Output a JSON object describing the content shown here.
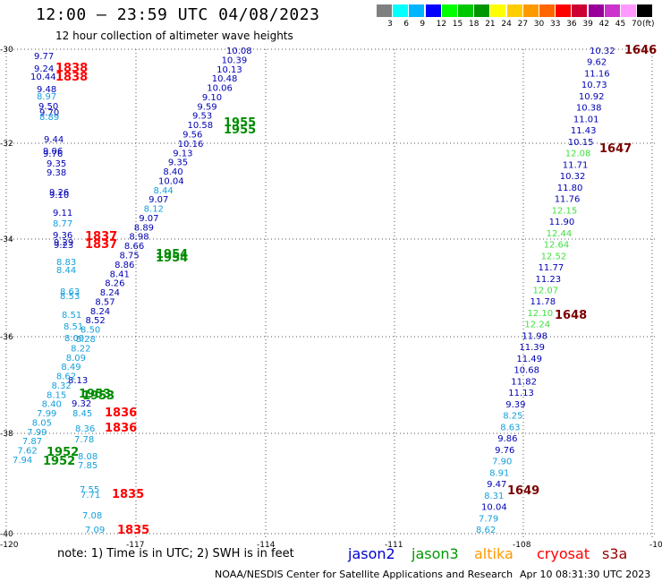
{
  "header": {
    "title": "12:00 – 23:59 UTC 04/08/2023",
    "subtitle": "12 hour collection of altimeter wave heights"
  },
  "legend": {
    "labels": [
      "3",
      "6",
      "9",
      "12",
      "15",
      "18",
      "21",
      "24",
      "27",
      "30",
      "33",
      "36",
      "39",
      "42",
      "45",
      "70"
    ],
    "unit": "(ft)",
    "colors": [
      "#808080",
      "#00ffff",
      "#00b4ff",
      "#0000ff",
      "#00ff00",
      "#00c800",
      "#009600",
      "#ffff00",
      "#ffcc00",
      "#ff9900",
      "#ff6600",
      "#ff0000",
      "#cc0033",
      "#990099",
      "#cc33cc",
      "#ff99ff",
      "#000000"
    ]
  },
  "axes": {
    "lon_labels": [
      "-120",
      "-117",
      "-114",
      "-111",
      "-108",
      "-10"
    ],
    "lat_labels": [
      "-30",
      "-32",
      "-34",
      "-36",
      "-38",
      "-40"
    ]
  },
  "map_data": {
    "colors": {
      "navy": "#0000b4",
      "cyan": "#14a0dc",
      "lgreen": "#40e040",
      "dgreen": "#008c00",
      "red": "#ff0000",
      "maroon": "#7a0000"
    },
    "left_column": [
      {
        "label": "9.77",
        "color": "navy"
      },
      {
        "label": "9.24",
        "color": "navy"
      },
      {
        "label": "10.44",
        "color": "navy"
      },
      {
        "label": "9.48",
        "color": "navy"
      },
      {
        "label": "8.97",
        "color": "cyan"
      },
      {
        "label": "9.50",
        "color": "navy"
      },
      {
        "label": "9.70",
        "color": "navy"
      },
      {
        "label": "8.89",
        "color": "cyan"
      },
      {
        "label": "9.44",
        "color": "navy"
      },
      {
        "label": "9.06",
        "color": "navy"
      },
      {
        "label": "9.76",
        "color": "navy"
      },
      {
        "label": "9.35",
        "color": "navy"
      },
      {
        "label": "9.38",
        "color": "navy"
      },
      {
        "label": "9.26",
        "color": "navy"
      },
      {
        "label": "9.10",
        "color": "navy"
      },
      {
        "label": "9.11",
        "color": "navy"
      },
      {
        "label": "8.77",
        "color": "cyan"
      },
      {
        "label": "9.36",
        "color": "navy"
      },
      {
        "label": "9.29",
        "color": "navy"
      },
      {
        "label": "9.23",
        "color": "navy"
      },
      {
        "label": "8.83",
        "color": "cyan"
      },
      {
        "label": "8.44",
        "color": "cyan"
      },
      {
        "label": "8.63",
        "color": "cyan"
      },
      {
        "label": "8.53",
        "color": "cyan"
      },
      {
        "label": "8.51",
        "color": "cyan"
      },
      {
        "label": "8.51",
        "color": "cyan"
      },
      {
        "label": "8.09",
        "color": "cyan"
      },
      {
        "label": "8.13",
        "color": "navy"
      },
      {
        "label": "9.32",
        "color": "navy"
      },
      {
        "label": "8.45",
        "color": "cyan"
      },
      {
        "label": "8.36",
        "color": "cyan"
      },
      {
        "label": "7.78",
        "color": "cyan"
      },
      {
        "label": "8.08",
        "color": "cyan"
      },
      {
        "label": "7.85",
        "color": "cyan"
      },
      {
        "label": "7.55",
        "color": "cyan"
      },
      {
        "label": "7.71",
        "color": "cyan"
      },
      {
        "label": "7.08",
        "color": "cyan"
      },
      {
        "label": "7.09",
        "color": "cyan"
      }
    ],
    "diagonal_track": [
      {
        "label": "10.08",
        "color": "navy"
      },
      {
        "label": "10.39",
        "color": "navy"
      },
      {
        "label": "10.13",
        "color": "navy"
      },
      {
        "label": "10.48",
        "color": "navy"
      },
      {
        "label": "10.06",
        "color": "navy"
      },
      {
        "label": "9.10",
        "color": "navy"
      },
      {
        "label": "9.59",
        "color": "navy"
      },
      {
        "label": "9.53",
        "color": "navy"
      },
      {
        "label": "10.58",
        "color": "navy"
      },
      {
        "label": "9.56",
        "color": "navy"
      },
      {
        "label": "10.16",
        "color": "navy"
      },
      {
        "label": "9.13",
        "color": "navy"
      },
      {
        "label": "9.35",
        "color": "navy"
      },
      {
        "label": "8.40",
        "color": "navy"
      },
      {
        "label": "10.04",
        "color": "navy"
      },
      {
        "label": "8.44",
        "color": "cyan"
      },
      {
        "label": "9.07",
        "color": "navy"
      },
      {
        "label": "8.12",
        "color": "cyan"
      },
      {
        "label": "9.07",
        "color": "navy"
      },
      {
        "label": "8.89",
        "color": "navy"
      },
      {
        "label": "8.98",
        "color": "navy"
      },
      {
        "label": "8.66",
        "color": "navy"
      },
      {
        "label": "8.75",
        "color": "navy"
      },
      {
        "label": "8.86",
        "color": "navy"
      },
      {
        "label": "8.41",
        "color": "navy"
      },
      {
        "label": "8.26",
        "color": "navy"
      },
      {
        "label": "8.24",
        "color": "navy"
      },
      {
        "label": "8.57",
        "color": "navy"
      },
      {
        "label": "8.24",
        "color": "navy"
      },
      {
        "label": "8.52",
        "color": "navy"
      },
      {
        "label": "8.50",
        "color": "cyan"
      },
      {
        "label": "8.28",
        "color": "cyan"
      },
      {
        "label": "8.22",
        "color": "cyan"
      },
      {
        "label": "8.09",
        "color": "cyan"
      },
      {
        "label": "8.49",
        "color": "cyan"
      },
      {
        "label": "8.62",
        "color": "cyan"
      },
      {
        "label": "8.32",
        "color": "cyan"
      },
      {
        "label": "8.15",
        "color": "cyan"
      },
      {
        "label": "8.40",
        "color": "cyan"
      },
      {
        "label": "7.99",
        "color": "cyan"
      },
      {
        "label": "8.05",
        "color": "cyan"
      },
      {
        "label": "7.99",
        "color": "cyan"
      },
      {
        "label": "7.87",
        "color": "cyan"
      },
      {
        "label": "7.62",
        "color": "cyan"
      },
      {
        "label": "7.94",
        "color": "cyan"
      }
    ],
    "right_track": [
      {
        "label": "10.32",
        "color": "navy"
      },
      {
        "label": "9.62",
        "color": "navy"
      },
      {
        "label": "11.16",
        "color": "navy"
      },
      {
        "label": "10.73",
        "color": "navy"
      },
      {
        "label": "10.92",
        "color": "navy"
      },
      {
        "label": "10.38",
        "color": "navy"
      },
      {
        "label": "11.01",
        "color": "navy"
      },
      {
        "label": "11.43",
        "color": "navy"
      },
      {
        "label": "10.15",
        "color": "navy"
      },
      {
        "label": "12.08",
        "color": "lgreen"
      },
      {
        "label": "11.71",
        "color": "navy"
      },
      {
        "label": "10.32",
        "color": "navy"
      },
      {
        "label": "11.80",
        "color": "navy"
      },
      {
        "label": "11.76",
        "color": "navy"
      },
      {
        "label": "12.15",
        "color": "lgreen"
      },
      {
        "label": "11.90",
        "color": "navy"
      },
      {
        "label": "12.44",
        "color": "lgreen"
      },
      {
        "label": "12.64",
        "color": "lgreen"
      },
      {
        "label": "12.52",
        "color": "lgreen"
      },
      {
        "label": "11.77",
        "color": "navy"
      },
      {
        "label": "11.23",
        "color": "navy"
      },
      {
        "label": "12.07",
        "color": "lgreen"
      },
      {
        "label": "11.78",
        "color": "navy"
      },
      {
        "label": "12.10",
        "color": "lgreen"
      },
      {
        "label": "12.24",
        "color": "lgreen"
      },
      {
        "label": "11.98",
        "color": "navy"
      },
      {
        "label": "11.39",
        "color": "navy"
      },
      {
        "label": "11.49",
        "color": "navy"
      },
      {
        "label": "10.68",
        "color": "navy"
      },
      {
        "label": "11.82",
        "color": "navy"
      },
      {
        "label": "11.13",
        "color": "navy"
      },
      {
        "label": "9.39",
        "color": "navy"
      },
      {
        "label": "8.25",
        "color": "cyan"
      },
      {
        "label": "8.63",
        "color": "cyan"
      },
      {
        "label": "9.86",
        "color": "navy"
      },
      {
        "label": "9.76",
        "color": "navy"
      },
      {
        "label": "7.90",
        "color": "cyan"
      },
      {
        "label": "8.91",
        "color": "cyan"
      },
      {
        "label": "9.47",
        "color": "navy"
      },
      {
        "label": "8.31",
        "color": "cyan"
      },
      {
        "label": "10.04",
        "color": "navy"
      },
      {
        "label": "7.79",
        "color": "cyan"
      },
      {
        "label": "8.62",
        "color": "cyan"
      }
    ],
    "time_labels": [
      {
        "label": "1838",
        "color": "red"
      },
      {
        "label": "1838",
        "color": "red"
      },
      {
        "label": "1837",
        "color": "red"
      },
      {
        "label": "1837",
        "color": "red"
      },
      {
        "label": "1836",
        "color": "red"
      },
      {
        "label": "1836",
        "color": "red"
      },
      {
        "label": "1835",
        "color": "red"
      },
      {
        "label": "1835",
        "color": "red"
      },
      {
        "label": "1955",
        "color": "dgreen"
      },
      {
        "label": "1955",
        "color": "dgreen"
      },
      {
        "label": "1954",
        "color": "dgreen"
      },
      {
        "label": "1954",
        "color": "dgreen"
      },
      {
        "label": "1953",
        "color": "dgreen"
      },
      {
        "label": "1953",
        "color": "dgreen"
      },
      {
        "label": "1952",
        "color": "dgreen"
      },
      {
        "label": "1952",
        "color": "dgreen"
      },
      {
        "label": "1646",
        "color": "maroon"
      },
      {
        "label": "1647",
        "color": "maroon"
      },
      {
        "label": "1648",
        "color": "maroon"
      },
      {
        "label": "1649",
        "color": "maroon"
      }
    ]
  },
  "footer": {
    "note": "note: 1) Time is in UTC; 2) SWH is in feet",
    "satellites": [
      {
        "name": "jason2",
        "color": "#0000cc"
      },
      {
        "name": "jason3",
        "color": "#009900"
      },
      {
        "name": "altika",
        "color": "#ff9900"
      },
      {
        "name": "cryosat",
        "color": "#ff0000"
      },
      {
        "name": "s3a",
        "color": "#990000"
      }
    ],
    "credit": "NOAA/NESDIS Center for Satellite Applications and Research",
    "timestamp": "Apr 10 08:31:30 UTC 2023"
  }
}
